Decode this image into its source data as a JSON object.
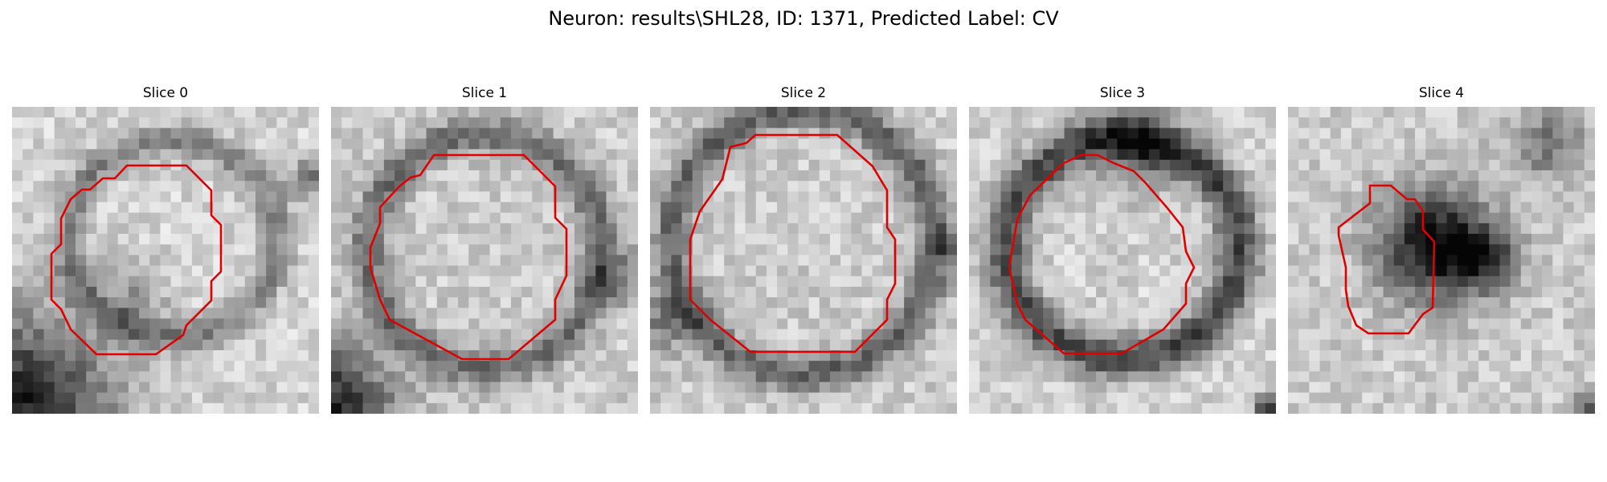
{
  "figure": {
    "title": "Neuron: results\\SHL28, ID: 1371, Predicted Label: CV",
    "contour_color": "#e00000"
  },
  "panels": [
    {
      "title": "Slice 0",
      "image": "grayscale-microscopy-slice",
      "contour": "red-outline"
    },
    {
      "title": "Slice 1",
      "image": "grayscale-microscopy-slice",
      "contour": "red-outline"
    },
    {
      "title": "Slice 2",
      "image": "grayscale-microscopy-slice",
      "contour": "red-outline"
    },
    {
      "title": "Slice 3",
      "image": "grayscale-microscopy-slice",
      "contour": "red-outline"
    },
    {
      "title": "Slice 4",
      "image": "grayscale-microscopy-slice",
      "contour": "red-outline"
    }
  ]
}
